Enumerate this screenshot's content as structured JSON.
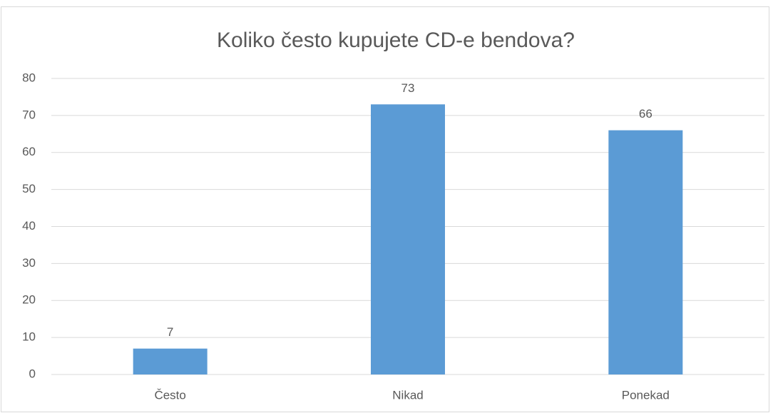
{
  "chart_data": {
    "type": "bar",
    "title": "Koliko često kupujete CD-e bendova?",
    "categories": [
      "Često",
      "Nikad",
      "Ponekad"
    ],
    "values": [
      7,
      73,
      66
    ],
    "color": "#5b9bd5",
    "ylim": [
      0,
      80
    ],
    "yticks": [
      0,
      10,
      20,
      30,
      40,
      50,
      60,
      70,
      80
    ],
    "grid": true,
    "data_labels": true
  }
}
